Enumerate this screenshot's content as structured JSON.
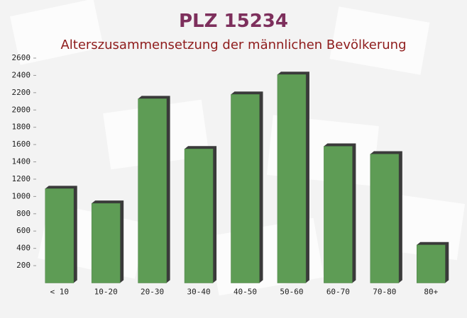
{
  "chart_data": {
    "type": "bar",
    "title": "PLZ 15234",
    "subtitle": "Alterszusammensetzung der männlichen Bevölkerung",
    "categories": [
      "< 10",
      "10-20",
      "20-30",
      "30-40",
      "40-50",
      "50-60",
      "60-70",
      "70-80",
      "80+"
    ],
    "values": [
      1090,
      920,
      2130,
      1550,
      2180,
      2410,
      1580,
      1490,
      440
    ],
    "color": "#5e9c55",
    "ylim": [
      0,
      2600
    ],
    "yticks": [
      200,
      400,
      600,
      800,
      1000,
      1200,
      1400,
      1600,
      1800,
      2000,
      2200,
      2400,
      2600
    ]
  }
}
